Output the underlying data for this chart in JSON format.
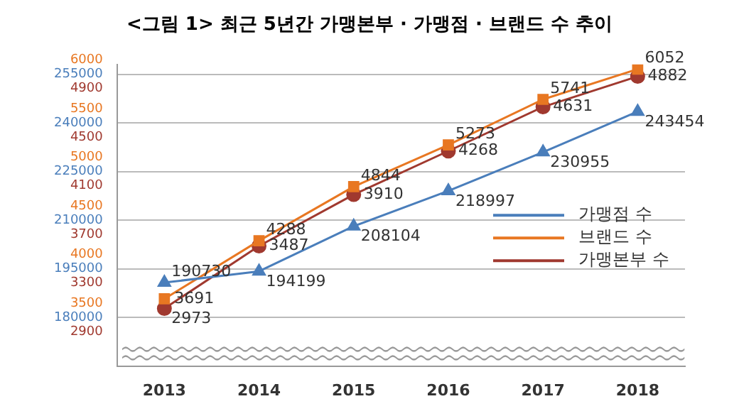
{
  "chart_data": {
    "type": "line",
    "title": "<그림 1> 최근 5년간 가맹본부 · 가맹점 · 브랜드 수 추이",
    "categories": [
      "2013",
      "2014",
      "2015",
      "2016",
      "2017",
      "2018"
    ],
    "series": [
      {
        "name": "가맹점 수",
        "color": "#4a7ebb",
        "marker": "triangle",
        "axis": "y",
        "values": [
          190730,
          194199,
          208104,
          218997,
          230955,
          243454
        ]
      },
      {
        "name": "브랜드 수",
        "color": "#e87722",
        "marker": "square",
        "axis": "y2",
        "values": [
          3691,
          4288,
          4844,
          5273,
          5741,
          6052
        ]
      },
      {
        "name": "가맹본부 수",
        "color": "#a0392f",
        "marker": "circle",
        "axis": "y3",
        "values": [
          2973,
          3487,
          3910,
          4268,
          4631,
          4882
        ]
      }
    ],
    "ylim": [
      165000,
      258000
    ],
    "yticks": [
      180000,
      195000,
      210000,
      225000,
      240000,
      255000
    ],
    "y2lim": [
      3000,
      6100
    ],
    "y2ticks": [
      3500,
      4000,
      4500,
      5000,
      5500,
      6000
    ],
    "y3lim": [
      2500,
      4980
    ],
    "y3ticks": [
      2900,
      3300,
      3700,
      4100,
      4500,
      4900
    ],
    "grid": "y",
    "legend": "right",
    "data_labels": true,
    "line_style": "solid"
  }
}
